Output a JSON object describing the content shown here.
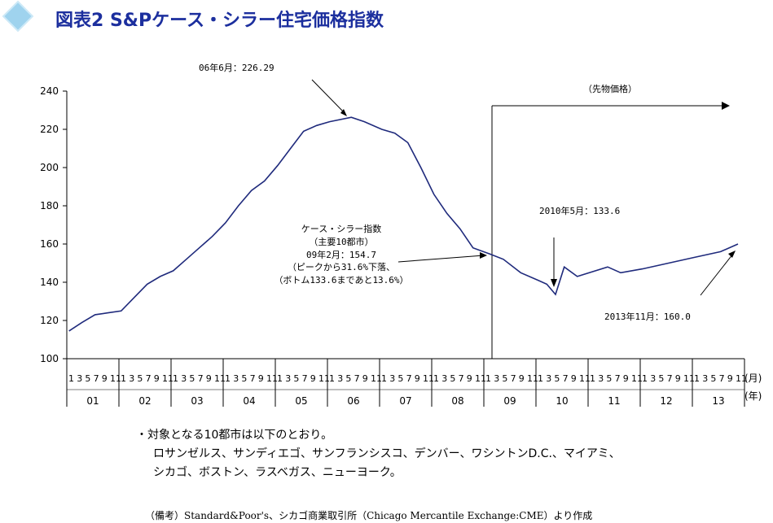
{
  "header": {
    "title": "図表2 S&Pケース・シラー住宅価格指数",
    "diamond_color": "#9fd3ee"
  },
  "chart_data": {
    "type": "line",
    "title": "",
    "xlabel": "",
    "ylabel": "",
    "ylim": [
      100,
      240
    ],
    "yticks": [
      100,
      120,
      140,
      160,
      180,
      200,
      220,
      240
    ],
    "x_month_ticks": [
      "1",
      "3",
      "5",
      "7",
      "9",
      "11"
    ],
    "x_unit_month": "(月)",
    "x_unit_year": "(年)",
    "years": [
      "01",
      "02",
      "03",
      "04",
      "05",
      "06",
      "07",
      "08",
      "09",
      "10",
      "11",
      "12",
      "13"
    ],
    "line_color": "#1f2a7c",
    "series": [
      {
        "x": [
          "2001-01",
          "2001-04",
          "2001-07",
          "2001-10",
          "2002-01",
          "2002-04",
          "2002-07",
          "2002-10",
          "2003-01",
          "2003-04",
          "2003-07",
          "2003-10",
          "2004-01",
          "2004-04",
          "2004-07",
          "2004-10",
          "2005-01",
          "2005-04",
          "2005-07",
          "2005-10",
          "2006-01",
          "2006-06",
          "2006-09",
          "2007-01",
          "2007-04",
          "2007-07",
          "2007-10",
          "2008-01",
          "2008-04",
          "2008-07",
          "2008-10",
          "2009-02",
          "2009-05",
          "2009-09",
          "2010-01",
          "2010-03",
          "2010-05",
          "2010-07",
          "2010-10",
          "2011-05",
          "2011-08",
          "2012-01",
          "2012-07",
          "2013-01",
          "2013-07",
          "2013-11"
        ],
        "values": [
          114.5,
          119,
          123,
          124,
          125,
          132,
          139,
          143,
          146,
          152,
          158,
          164,
          171,
          180,
          188,
          193,
          201,
          210,
          219,
          222,
          224,
          226.3,
          224,
          220,
          218,
          213,
          200,
          186,
          176,
          168,
          158,
          154.7,
          152,
          145,
          141,
          139,
          133.6,
          148,
          143,
          148,
          145,
          147,
          150,
          153,
          156,
          160
        ]
      }
    ],
    "annotations": {
      "peak": "06年6月：226.29",
      "futures": "（先物価格）",
      "index_lines": [
        "ケース・シラー指数",
        "（主要10都市）",
        "09年2月：154.7",
        "（ピークから31.6%下落、",
        "（ボトム133.6まであと13.6%）"
      ],
      "low": "2010年5月：133.6",
      "last": "2013年11月：160.0"
    }
  },
  "notes": {
    "line1": "・対象となる10都市は以下のとおり。",
    "line2": "ロサンゼルス、サンディエゴ、サンフランシスコ、デンバー、ワシントンD.C.、マイアミ、",
    "line3": "シカゴ、ボストン、ラスベガス、ニューヨーク。",
    "source": "（備考）Standard&Poor's、シカゴ商業取引所（Chicago Mercantile Exchange:CME）より作成"
  }
}
